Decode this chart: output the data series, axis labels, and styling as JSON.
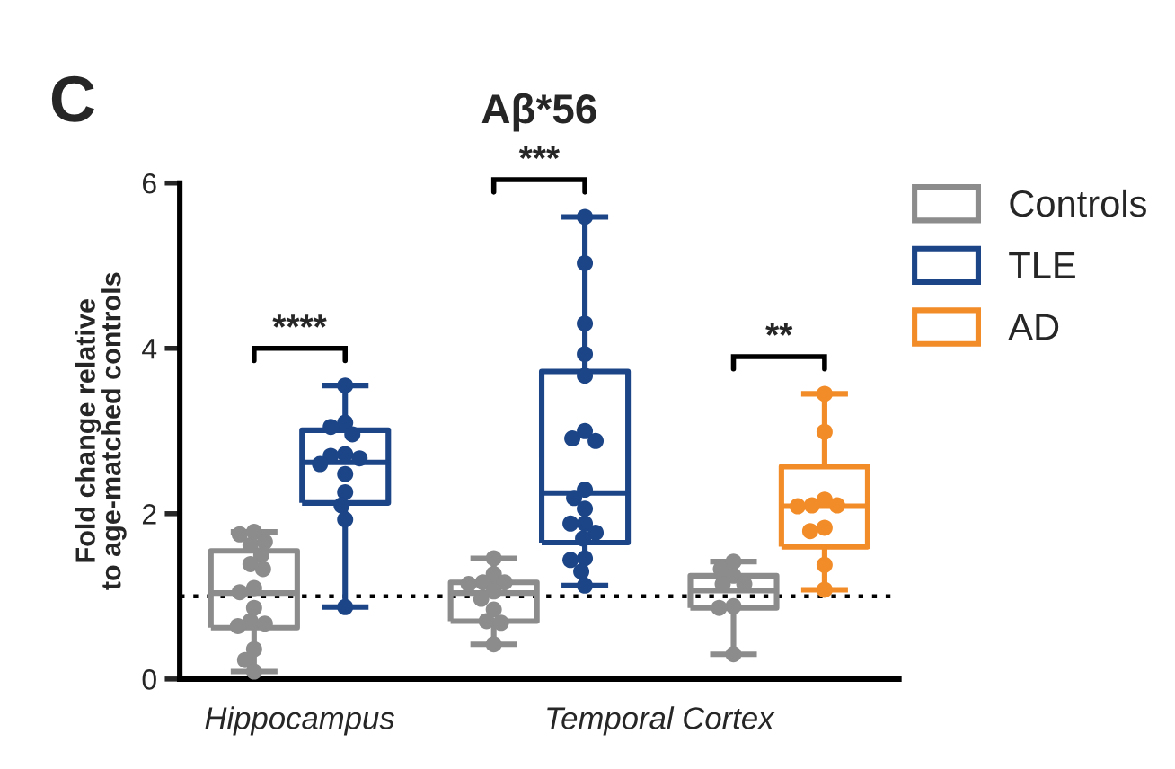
{
  "chart_data": {
    "type": "box",
    "title": "Aβ*56",
    "ylabel": "Fold change relative\nto age-matched controls",
    "categories": [
      null,
      null,
      null,
      null,
      null,
      null
    ],
    "ylim": [
      0,
      6
    ],
    "yticks": [
      0,
      2,
      4,
      6
    ],
    "legend": "top right",
    "marker": "circle",
    "ref_lines": [
      {
        "axis": "y",
        "value": 1,
        "color": "#000000",
        "line_style": "dotted"
      }
    ],
    "annotations": [
      "C",
      "****",
      "***",
      "**",
      "Hippocampus",
      "Temporal Cortex"
    ],
    "series": [
      {
        "name": "Controls",
        "color": "#8c8c8c",
        "boxes": [
          {
            "low": 0.09,
            "q1": 0.62,
            "median": 1.04,
            "q3": 1.55,
            "high": 1.78
          },
          null,
          {
            "low": 0.42,
            "q1": 0.7,
            "median": 1.04,
            "q3": 1.17,
            "high": 1.46
          },
          null,
          {
            "low": 0.3,
            "q1": 0.86,
            "median": 1.07,
            "q3": 1.25,
            "high": 1.42
          },
          null
        ]
      },
      {
        "name": "TLE",
        "color": "#1c4587",
        "boxes": [
          null,
          {
            "low": 0.87,
            "q1": 2.13,
            "median": 2.62,
            "q3": 3.01,
            "high": 3.55
          },
          null,
          {
            "low": 1.13,
            "q1": 1.65,
            "median": 2.25,
            "q3": 3.72,
            "high": 5.59
          },
          null,
          null
        ]
      },
      {
        "name": "AD",
        "color": "#f28c28",
        "boxes": [
          null,
          null,
          null,
          null,
          null,
          {
            "low": 1.08,
            "q1": 1.6,
            "median": 2.09,
            "q3": 2.57,
            "high": 3.45
          }
        ]
      },
      {
        "type": "scatter",
        "colors": [
          "#8c8c8c",
          "#1c4587",
          "#8c8c8c",
          "#1c4587",
          "#8c8c8c",
          "#f28c28"
        ],
        "values": [
          1.78,
          3.55,
          1.46,
          5.59,
          1.42,
          3.45
        ]
      },
      {
        "type": "scatter",
        "colors": [
          "#8c8c8c",
          "#1c4587",
          "#8c8c8c",
          "#1c4587",
          "#8c8c8c",
          "#f28c28"
        ],
        "values": [
          1.75,
          3.1,
          1.27,
          5.03,
          1.33,
          2.99
        ]
      },
      {
        "type": "scatter",
        "colors": [
          "#8c8c8c",
          "#1c4587",
          "#8c8c8c",
          "#1c4587",
          "#8c8c8c",
          "#f28c28"
        ],
        "values": [
          1.66,
          3.05,
          1.17,
          4.3,
          1.25,
          2.17
        ]
      },
      {
        "type": "scatter",
        "colors": [
          "#8c8c8c",
          "#1c4587",
          "#8c8c8c",
          "#1c4587",
          "#8c8c8c",
          "#f28c28"
        ],
        "values": [
          1.62,
          2.96,
          1.17,
          3.93,
          1.15,
          2.1
        ]
      },
      {
        "type": "scatter",
        "colors": [
          "#8c8c8c",
          "#1c4587",
          "#8c8c8c",
          "#1c4587",
          "#8c8c8c",
          "#f28c28"
        ],
        "values": [
          1.5,
          2.72,
          1.15,
          3.67,
          1.15,
          2.1
        ]
      },
      {
        "type": "scatter",
        "colors": [
          "#8c8c8c",
          "#1c4587",
          "#8c8c8c",
          "#1c4587",
          "#8c8c8c",
          "#f28c28"
        ],
        "values": [
          1.39,
          2.7,
          1.06,
          3.0,
          0.88,
          2.09
        ]
      },
      {
        "type": "scatter",
        "colors": [
          "#8c8c8c",
          "#1c4587",
          "#8c8c8c",
          "#1c4587",
          "#8c8c8c",
          "#f28c28"
        ],
        "values": [
          1.33,
          2.67,
          0.97,
          2.91,
          0.86,
          1.83
        ]
      },
      {
        "type": "scatter",
        "colors": [
          "#8c8c8c",
          "#1c4587",
          "#8c8c8c",
          "#1c4587",
          "#8c8c8c",
          "#f28c28"
        ],
        "values": [
          1.1,
          2.6,
          0.84,
          2.88,
          0.3,
          1.79
        ]
      },
      {
        "type": "scatter",
        "colors": [
          "#8c8c8c",
          "#1c4587",
          "#8c8c8c",
          "#1c4587",
          "#8c8c8c",
          "#f28c28"
        ],
        "values": [
          1.05,
          2.48,
          0.7,
          2.29,
          null,
          1.38
        ]
      },
      {
        "type": "scatter",
        "colors": [
          "#8c8c8c",
          "#1c4587",
          "#8c8c8c",
          "#1c4587",
          "#8c8c8c",
          "#f28c28"
        ],
        "values": [
          0.86,
          2.26,
          0.68,
          2.19,
          null,
          1.08
        ]
      },
      {
        "type": "scatter",
        "colors": [
          "#8c8c8c",
          "#1c4587",
          "#8c8c8c",
          "#1c4587",
          "#8c8c8c",
          "#f28c28"
        ],
        "values": [
          0.7,
          2.1,
          0.42,
          2.06,
          null,
          null
        ]
      },
      {
        "type": "scatter",
        "colors": [
          "#8c8c8c",
          "#1c4587",
          "#8c8c8c",
          "#1c4587",
          "#8c8c8c",
          "#f28c28"
        ],
        "values": [
          0.67,
          1.93,
          null,
          1.88,
          null,
          null
        ]
      },
      {
        "type": "scatter",
        "colors": [
          "#8c8c8c",
          "#1c4587",
          "#8c8c8c",
          "#1c4587",
          "#8c8c8c",
          "#f28c28"
        ],
        "values": [
          0.64,
          0.87,
          null,
          1.88,
          null,
          null
        ]
      },
      {
        "type": "scatter",
        "colors": [
          "#8c8c8c",
          "#1c4587",
          "#8c8c8c",
          "#1c4587",
          "#8c8c8c",
          "#f28c28"
        ],
        "values": [
          0.36,
          null,
          null,
          1.77,
          null,
          null
        ]
      },
      {
        "type": "scatter",
        "colors": [
          "#8c8c8c",
          "#1c4587",
          "#8c8c8c",
          "#1c4587",
          "#8c8c8c",
          "#f28c28"
        ],
        "values": [
          0.23,
          null,
          null,
          1.7,
          null,
          null
        ]
      },
      {
        "type": "scatter",
        "colors": [
          "#8c8c8c",
          "#1c4587",
          "#8c8c8c",
          "#1c4587",
          "#8c8c8c",
          "#f28c28"
        ],
        "values": [
          0.09,
          null,
          null,
          1.46,
          null,
          null
        ]
      },
      {
        "type": "scatter",
        "colors": [
          "#8c8c8c",
          "#1c4587",
          "#8c8c8c",
          "#1c4587",
          "#8c8c8c",
          "#f28c28"
        ],
        "values": [
          null,
          null,
          null,
          1.44,
          null,
          null
        ]
      },
      {
        "type": "scatter",
        "colors": [
          "#8c8c8c",
          "#1c4587",
          "#8c8c8c",
          "#1c4587",
          "#8c8c8c",
          "#f28c28"
        ],
        "values": [
          null,
          null,
          null,
          1.3,
          null,
          null
        ]
      },
      {
        "type": "scatter",
        "colors": [
          "#8c8c8c",
          "#1c4587",
          "#8c8c8c",
          "#1c4587",
          "#8c8c8c",
          "#f28c28"
        ],
        "values": [
          null,
          null,
          null,
          1.13,
          null,
          null
        ]
      }
    ]
  }
}
